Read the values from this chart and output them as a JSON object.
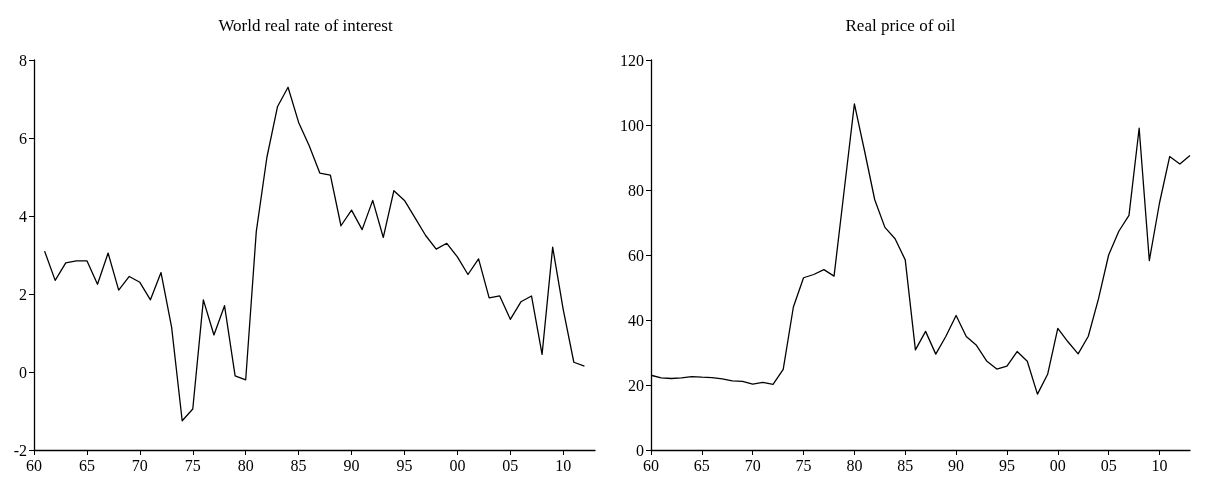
{
  "chart_data": [
    {
      "type": "line",
      "title": "World real rate of interest",
      "x": [
        1961,
        1962,
        1963,
        1964,
        1965,
        1966,
        1967,
        1968,
        1969,
        1970,
        1971,
        1972,
        1973,
        1974,
        1975,
        1976,
        1977,
        1978,
        1979,
        1980,
        1981,
        1982,
        1983,
        1984,
        1985,
        1986,
        1987,
        1988,
        1989,
        1990,
        1991,
        1992,
        1993,
        1994,
        1995,
        1996,
        1997,
        1998,
        1999,
        2000,
        2001,
        2002,
        2003,
        2004,
        2005,
        2006,
        2007,
        2008,
        2009,
        2010,
        2011,
        2012
      ],
      "series": [
        {
          "color": "#000000",
          "values": [
            3.1,
            2.35,
            2.8,
            2.85,
            2.85,
            2.25,
            3.05,
            2.1,
            2.45,
            2.3,
            1.85,
            2.55,
            1.15,
            -1.25,
            -0.95,
            1.85,
            0.95,
            1.7,
            -0.1,
            -0.2,
            3.6,
            5.5,
            6.8,
            7.3,
            6.4,
            5.8,
            5.1,
            5.05,
            3.75,
            4.15,
            3.65,
            4.4,
            3.45,
            4.65,
            4.4,
            3.95,
            3.5,
            3.15,
            3.3,
            2.95,
            2.5,
            2.9,
            1.9,
            1.95,
            1.35,
            1.8,
            1.95,
            0.45,
            3.2,
            1.6,
            0.25,
            0.15
          ]
        }
      ],
      "xlim": [
        1960,
        2013
      ],
      "xticks": [
        {
          "value": 1960,
          "label": "60"
        },
        {
          "value": 1965,
          "label": "65"
        },
        {
          "value": 1970,
          "label": "70"
        },
        {
          "value": 1975,
          "label": "75"
        },
        {
          "value": 1980,
          "label": "80"
        },
        {
          "value": 1985,
          "label": "85"
        },
        {
          "value": 1990,
          "label": "90"
        },
        {
          "value": 1995,
          "label": "95"
        },
        {
          "value": 2000,
          "label": "00"
        },
        {
          "value": 2005,
          "label": "05"
        },
        {
          "value": 2010,
          "label": "10"
        }
      ],
      "ylim": [
        -2,
        8
      ],
      "yticks": [
        -2,
        0,
        2,
        4,
        6,
        8
      ],
      "grid": false,
      "marker": "none",
      "line_style": "solid"
    },
    {
      "type": "line",
      "title": "Real price of oil",
      "x": [
        1960,
        1961,
        1962,
        1963,
        1964,
        1965,
        1966,
        1967,
        1968,
        1969,
        1970,
        1971,
        1972,
        1973,
        1974,
        1975,
        1976,
        1977,
        1978,
        1979,
        1980,
        1981,
        1982,
        1983,
        1984,
        1985,
        1986,
        1987,
        1988,
        1989,
        1990,
        1991,
        1992,
        1993,
        1994,
        1995,
        1996,
        1997,
        1998,
        1999,
        2000,
        2001,
        2002,
        2003,
        2004,
        2005,
        2006,
        2007,
        2008,
        2009,
        2010,
        2011,
        2012,
        2013
      ],
      "series": [
        {
          "color": "#000000",
          "values": [
            23,
            22.2,
            22,
            22.2,
            22.6,
            22.4,
            22.3,
            21.9,
            21.3,
            21.1,
            20.3,
            20.8,
            20.2,
            24.8,
            44,
            53,
            54,
            55.5,
            53.5,
            80,
            106.5,
            92,
            77,
            68.5,
            65,
            58.5,
            30.8,
            36.5,
            29.5,
            35,
            41.4,
            34.9,
            32.2,
            27.4,
            24.9,
            25.8,
            30.3,
            27.3,
            17.2,
            23.3,
            37.4,
            33.3,
            29.6,
            35,
            46.5,
            60,
            67.3,
            72.2,
            99,
            58.3,
            76,
            90.3,
            88,
            90.6
          ]
        }
      ],
      "xlim": [
        1960,
        2013
      ],
      "xticks": [
        {
          "value": 1960,
          "label": "60"
        },
        {
          "value": 1965,
          "label": "65"
        },
        {
          "value": 1970,
          "label": "70"
        },
        {
          "value": 1975,
          "label": "75"
        },
        {
          "value": 1980,
          "label": "80"
        },
        {
          "value": 1985,
          "label": "85"
        },
        {
          "value": 1990,
          "label": "90"
        },
        {
          "value": 1995,
          "label": "95"
        },
        {
          "value": 2000,
          "label": "00"
        },
        {
          "value": 2005,
          "label": "05"
        },
        {
          "value": 2010,
          "label": "10"
        }
      ],
      "ylim": [
        0,
        120
      ],
      "yticks": [
        0,
        20,
        40,
        60,
        80,
        100,
        120
      ],
      "grid": false,
      "marker": "none",
      "line_style": "solid"
    }
  ]
}
